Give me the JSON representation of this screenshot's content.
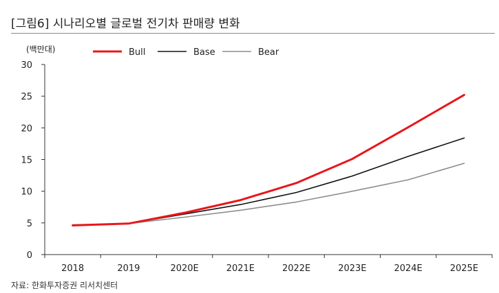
{
  "header": {
    "title": "[그림6]   시나리오별 글로벌 전기차 판매량 변화"
  },
  "source": "자료: 한화투자증권 리서치센터",
  "chart_data": {
    "type": "line",
    "title": "[그림6]   시나리오별 글로벌 전기차 판매량 변화",
    "ylabel": "(백만대)",
    "xlabel": "",
    "categories": [
      "2018",
      "2019",
      "2020E",
      "2021E",
      "2022E",
      "2023E",
      "2024E",
      "2025E"
    ],
    "ylim": [
      0,
      30
    ],
    "yticks": [
      0,
      5,
      10,
      15,
      20,
      25,
      30
    ],
    "grid": false,
    "legend_position": "top",
    "series": [
      {
        "name": "Bull",
        "color": "#e8161b",
        "width": 3,
        "values": [
          4.6,
          4.9,
          6.6,
          8.6,
          11.3,
          15.1,
          20.1,
          25.2
        ]
      },
      {
        "name": "Base",
        "color": "#111111",
        "width": 1.6,
        "values": [
          4.6,
          4.9,
          6.4,
          7.9,
          9.8,
          12.4,
          15.5,
          18.4
        ]
      },
      {
        "name": "Bear",
        "color": "#8c8c8c",
        "width": 1.6,
        "values": [
          4.7,
          4.9,
          5.9,
          7.0,
          8.3,
          10.0,
          11.8,
          14.4
        ]
      }
    ]
  }
}
